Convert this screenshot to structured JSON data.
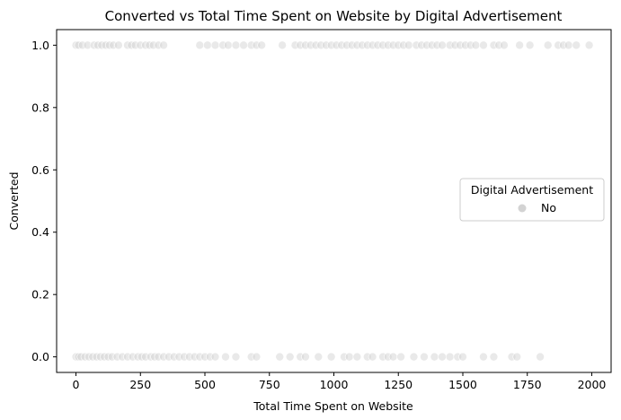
{
  "chart_data": {
    "type": "scatter",
    "title": "Converted vs Total Time Spent on Website by Digital Advertisement",
    "xlabel": "Total Time Spent on Website",
    "ylabel": "Converted",
    "xlim": [
      -75,
      2075
    ],
    "ylim": [
      -0.05,
      1.05
    ],
    "xticks": [
      0,
      250,
      500,
      750,
      1000,
      1250,
      1500,
      1750,
      2000
    ],
    "xtick_labels": [
      "0",
      "250",
      "500",
      "750",
      "1000",
      "1250",
      "1500",
      "1750",
      "2000"
    ],
    "yticks": [
      0.0,
      0.2,
      0.4,
      0.6,
      0.8,
      1.0
    ],
    "ytick_labels": [
      "0.0",
      "0.2",
      "0.4",
      "0.6",
      "0.8",
      "1.0"
    ],
    "grid": false,
    "legend": {
      "title": "Digital Advertisement",
      "placement": "center-right",
      "entries": [
        "No"
      ]
    },
    "series": [
      {
        "name": "No",
        "color": "#d3d3d3",
        "points": [
          [
            0,
            1
          ],
          [
            10,
            1
          ],
          [
            25,
            1
          ],
          [
            45,
            1
          ],
          [
            70,
            1
          ],
          [
            85,
            1
          ],
          [
            100,
            1
          ],
          [
            115,
            1
          ],
          [
            130,
            1
          ],
          [
            145,
            1
          ],
          [
            165,
            1
          ],
          [
            200,
            1
          ],
          [
            215,
            1
          ],
          [
            230,
            1
          ],
          [
            250,
            1
          ],
          [
            270,
            1
          ],
          [
            285,
            1
          ],
          [
            300,
            1
          ],
          [
            320,
            1
          ],
          [
            340,
            1
          ],
          [
            480,
            1
          ],
          [
            510,
            1
          ],
          [
            540,
            1
          ],
          [
            570,
            1
          ],
          [
            590,
            1
          ],
          [
            620,
            1
          ],
          [
            650,
            1
          ],
          [
            680,
            1
          ],
          [
            700,
            1
          ],
          [
            720,
            1
          ],
          [
            800,
            1
          ],
          [
            850,
            1
          ],
          [
            870,
            1
          ],
          [
            890,
            1
          ],
          [
            910,
            1
          ],
          [
            930,
            1
          ],
          [
            950,
            1
          ],
          [
            970,
            1
          ],
          [
            990,
            1
          ],
          [
            1010,
            1
          ],
          [
            1030,
            1
          ],
          [
            1050,
            1
          ],
          [
            1070,
            1
          ],
          [
            1090,
            1
          ],
          [
            1110,
            1
          ],
          [
            1130,
            1
          ],
          [
            1150,
            1
          ],
          [
            1170,
            1
          ],
          [
            1190,
            1
          ],
          [
            1210,
            1
          ],
          [
            1230,
            1
          ],
          [
            1250,
            1
          ],
          [
            1270,
            1
          ],
          [
            1290,
            1
          ],
          [
            1320,
            1
          ],
          [
            1340,
            1
          ],
          [
            1360,
            1
          ],
          [
            1380,
            1
          ],
          [
            1400,
            1
          ],
          [
            1420,
            1
          ],
          [
            1450,
            1
          ],
          [
            1470,
            1
          ],
          [
            1490,
            1
          ],
          [
            1510,
            1
          ],
          [
            1530,
            1
          ],
          [
            1550,
            1
          ],
          [
            1580,
            1
          ],
          [
            1620,
            1
          ],
          [
            1640,
            1
          ],
          [
            1660,
            1
          ],
          [
            1720,
            1
          ],
          [
            1760,
            1
          ],
          [
            1830,
            1
          ],
          [
            1870,
            1
          ],
          [
            1890,
            1
          ],
          [
            1910,
            1
          ],
          [
            1940,
            1
          ],
          [
            1990,
            1
          ],
          [
            0,
            0
          ],
          [
            10,
            0
          ],
          [
            20,
            0
          ],
          [
            35,
            0
          ],
          [
            50,
            0
          ],
          [
            65,
            0
          ],
          [
            80,
            0
          ],
          [
            95,
            0
          ],
          [
            110,
            0
          ],
          [
            125,
            0
          ],
          [
            140,
            0
          ],
          [
            160,
            0
          ],
          [
            180,
            0
          ],
          [
            200,
            0
          ],
          [
            220,
            0
          ],
          [
            240,
            0
          ],
          [
            255,
            0
          ],
          [
            270,
            0
          ],
          [
            290,
            0
          ],
          [
            305,
            0
          ],
          [
            320,
            0
          ],
          [
            340,
            0
          ],
          [
            360,
            0
          ],
          [
            380,
            0
          ],
          [
            400,
            0
          ],
          [
            420,
            0
          ],
          [
            440,
            0
          ],
          [
            460,
            0
          ],
          [
            480,
            0
          ],
          [
            500,
            0
          ],
          [
            520,
            0
          ],
          [
            540,
            0
          ],
          [
            580,
            0
          ],
          [
            620,
            0
          ],
          [
            680,
            0
          ],
          [
            700,
            0
          ],
          [
            790,
            0
          ],
          [
            830,
            0
          ],
          [
            870,
            0
          ],
          [
            890,
            0
          ],
          [
            940,
            0
          ],
          [
            990,
            0
          ],
          [
            1040,
            0
          ],
          [
            1060,
            0
          ],
          [
            1090,
            0
          ],
          [
            1130,
            0
          ],
          [
            1150,
            0
          ],
          [
            1190,
            0
          ],
          [
            1210,
            0
          ],
          [
            1230,
            0
          ],
          [
            1260,
            0
          ],
          [
            1310,
            0
          ],
          [
            1350,
            0
          ],
          [
            1390,
            0
          ],
          [
            1420,
            0
          ],
          [
            1450,
            0
          ],
          [
            1480,
            0
          ],
          [
            1500,
            0
          ],
          [
            1580,
            0
          ],
          [
            1620,
            0
          ],
          [
            1690,
            0
          ],
          [
            1710,
            0
          ],
          [
            1800,
            0
          ]
        ]
      }
    ]
  }
}
